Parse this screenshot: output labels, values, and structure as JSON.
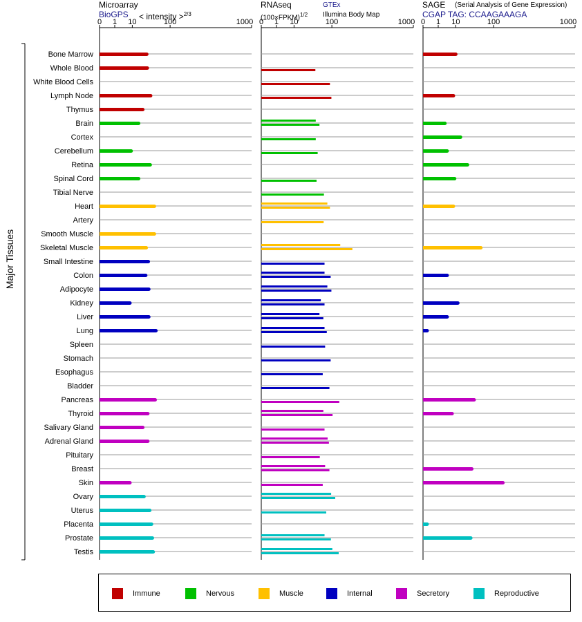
{
  "headers": {
    "microarray_title": "Microarray",
    "microarray_source": "BioGPS",
    "microarray_units": "< intensity >",
    "microarray_units_exp": "2/3",
    "rnaseq_title": "RNAseq",
    "rnaseq_units": "(100×FPKM)",
    "rnaseq_units_exp": "1/2",
    "rnaseq_source1": "GTEx",
    "rnaseq_source2": "Illumina Body Map",
    "sage_title": "SAGE",
    "sage_subtitle": "(Serial Analysis of Gene Expression)",
    "sage_tag": "CGAP TAG: CCAAGAAAGA"
  },
  "colors": {
    "Immune": "#c00000",
    "Nervous": "#00c000",
    "Muscle": "#ffc000",
    "Internal": "#0000c0",
    "Secretory": "#c000c0",
    "Reproductive": "#00c0c0"
  },
  "legend": [
    {
      "name": "Immune",
      "color": "#c00000"
    },
    {
      "name": "Nervous",
      "color": "#00c000"
    },
    {
      "name": "Muscle",
      "color": "#ffc000"
    },
    {
      "name": "Internal",
      "color": "#0000c0"
    },
    {
      "name": "Secretory",
      "color": "#c000c0"
    },
    {
      "name": "Reproductive",
      "color": "#00c0c0"
    }
  ],
  "chart_data": {
    "type": "bar",
    "orientation": "horizontal",
    "ylabel": "Major Tissues",
    "x_scale": "power",
    "x_ticks": [
      0,
      1,
      10,
      100,
      1000
    ],
    "xlim": [
      0,
      1000
    ],
    "panels": [
      "microarray",
      "rnaseq",
      "sage"
    ],
    "tissues": [
      {
        "name": "Bone Marrow",
        "group": "Immune",
        "microarray": [
          30
        ],
        "rnaseq": [],
        "sage": [
          10
        ]
      },
      {
        "name": "Whole Blood",
        "group": "Immune",
        "microarray": [
          31
        ],
        "rnaseq": [
          45
        ],
        "sage": []
      },
      {
        "name": "White Blood Cells",
        "group": "Immune",
        "microarray": [],
        "rnaseq": [
          92
        ],
        "sage": []
      },
      {
        "name": "Lymph Node",
        "group": "Immune",
        "microarray": [
          38
        ],
        "rnaseq": [
          98
        ],
        "sage": [
          8
        ]
      },
      {
        "name": "Thymus",
        "group": "Immune",
        "microarray": [
          23
        ],
        "rnaseq": [],
        "sage": []
      },
      {
        "name": "Brain",
        "group": "Nervous",
        "microarray": [
          17
        ],
        "rnaseq": [
          46,
          56
        ],
        "sage": [
          3
        ]
      },
      {
        "name": "Cortex",
        "group": "Nervous",
        "microarray": [],
        "rnaseq": [
          46
        ],
        "sage": [
          15
        ]
      },
      {
        "name": "Cerebellum",
        "group": "Nervous",
        "microarray": [
          9
        ],
        "rnaseq": [
          51
        ],
        "sage": [
          4
        ]
      },
      {
        "name": "Retina",
        "group": "Nervous",
        "microarray": [
          37
        ],
        "rnaseq": [],
        "sage": [
          25
        ]
      },
      {
        "name": "Spinal Cord",
        "group": "Nervous",
        "microarray": [
          17
        ],
        "rnaseq": [
          48
        ],
        "sage": [
          9
        ]
      },
      {
        "name": "Tibial Nerve",
        "group": "Nervous",
        "microarray": [],
        "rnaseq": [
          70
        ],
        "sage": []
      },
      {
        "name": "Heart",
        "group": "Muscle",
        "microarray": [
          47
        ],
        "rnaseq": [
          82,
          92
        ],
        "sage": [
          8
        ]
      },
      {
        "name": "Artery",
        "group": "Muscle",
        "microarray": [],
        "rnaseq": [
          69
        ],
        "sage": []
      },
      {
        "name": "Smooth Muscle",
        "group": "Muscle",
        "microarray": [
          47
        ],
        "rnaseq": [],
        "sage": []
      },
      {
        "name": "Skeletal Muscle",
        "group": "Muscle",
        "microarray": [
          29
        ],
        "rnaseq": [
          140,
          215
        ],
        "sage": [
          55
        ]
      },
      {
        "name": "Small Intestine",
        "group": "Internal",
        "microarray": [
          33
        ],
        "rnaseq": [
          72
        ],
        "sage": []
      },
      {
        "name": "Colon",
        "group": "Internal",
        "microarray": [
          28
        ],
        "rnaseq": [
          72,
          95
        ],
        "sage": [
          4
        ]
      },
      {
        "name": "Adipocyte",
        "group": "Internal",
        "microarray": [
          34
        ],
        "rnaseq": [
          82,
          98
        ],
        "sage": []
      },
      {
        "name": "Kidney",
        "group": "Internal",
        "microarray": [
          8
        ],
        "rnaseq": [
          60,
          72
        ],
        "sage": [
          12
        ]
      },
      {
        "name": "Liver",
        "group": "Internal",
        "microarray": [
          34
        ],
        "rnaseq": [
          56,
          68
        ],
        "sage": [
          4
        ]
      },
      {
        "name": "Lung",
        "group": "Internal",
        "microarray": [
          51
        ],
        "rnaseq": [
          72,
          80
        ],
        "sage": [
          0.02
        ]
      },
      {
        "name": "Spleen",
        "group": "Internal",
        "microarray": [],
        "rnaseq": [
          74
        ],
        "sage": []
      },
      {
        "name": "Stomach",
        "group": "Internal",
        "microarray": [],
        "rnaseq": [
          95
        ],
        "sage": []
      },
      {
        "name": "Esophagus",
        "group": "Internal",
        "microarray": [],
        "rnaseq": [
          66
        ],
        "sage": []
      },
      {
        "name": "Bladder",
        "group": "Internal",
        "microarray": [],
        "rnaseq": [
          90
        ],
        "sage": []
      },
      {
        "name": "Pancreas",
        "group": "Secretory",
        "microarray": [
          49
        ],
        "rnaseq": [
          135
        ],
        "sage": [
          38
        ]
      },
      {
        "name": "Thyroid",
        "group": "Secretory",
        "microarray": [
          32
        ],
        "rnaseq": [
          68,
          103
        ],
        "sage": [
          7
        ]
      },
      {
        "name": "Salivary Gland",
        "group": "Secretory",
        "microarray": [
          23
        ],
        "rnaseq": [
          72
        ],
        "sage": []
      },
      {
        "name": "Adrenal Gland",
        "group": "Secretory",
        "microarray": [
          32
        ],
        "rnaseq": [
          83,
          88
        ],
        "sage": []
      },
      {
        "name": "Pituitary",
        "group": "Secretory",
        "microarray": [],
        "rnaseq": [
          57
        ],
        "sage": []
      },
      {
        "name": "Breast",
        "group": "Secretory",
        "microarray": [],
        "rnaseq": [
          74,
          90
        ],
        "sage": [
          33
        ]
      },
      {
        "name": "Skin",
        "group": "Secretory",
        "microarray": [
          8
        ],
        "rnaseq": [
          66
        ],
        "sage": [
          145
        ]
      },
      {
        "name": "Ovary",
        "group": "Reproductive",
        "microarray": [
          25
        ],
        "rnaseq": [
          97,
          115
        ],
        "sage": []
      },
      {
        "name": "Uterus",
        "group": "Reproductive",
        "microarray": [
          36
        ],
        "rnaseq": [
          78
        ],
        "sage": []
      },
      {
        "name": "Placenta",
        "group": "Reproductive",
        "microarray": [
          40
        ],
        "rnaseq": [],
        "sage": [
          0.02
        ]
      },
      {
        "name": "Prostate",
        "group": "Reproductive",
        "microarray": [
          42
        ],
        "rnaseq": [
          72,
          96
        ],
        "sage": [
          31
        ]
      },
      {
        "name": "Testis",
        "group": "Reproductive",
        "microarray": [
          44
        ],
        "rnaseq": [
          102,
          132
        ],
        "sage": []
      }
    ]
  }
}
